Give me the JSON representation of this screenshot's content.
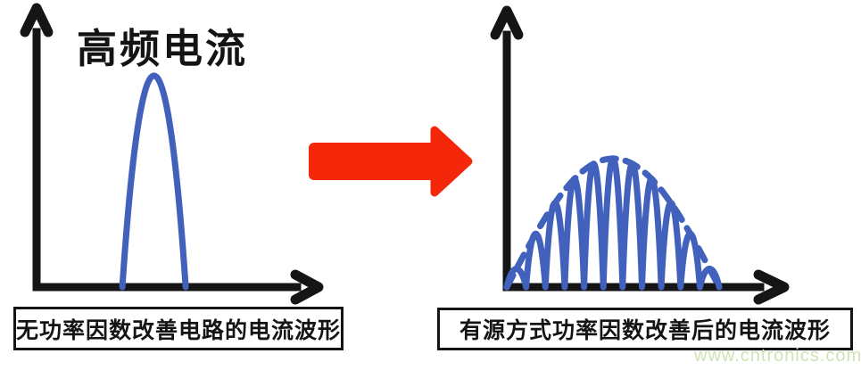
{
  "colors": {
    "axis_black": "#151515",
    "waveform_blue": "#4161bd",
    "arrow_red": "#f5270b",
    "watermark_green": "#cfe4b4",
    "background": "#ffffff"
  },
  "watermark": {
    "text": "www.cntronics.com"
  },
  "transform_arrow": {
    "direction": "right",
    "color_key": "arrow_red"
  },
  "chart_data": [
    {
      "panel": "left",
      "type": "line",
      "title": "高频电流",
      "caption": "无功率因数改善电路的电流波形",
      "x_axis": {
        "label": "",
        "style": "arrow",
        "range": [
          0,
          1
        ]
      },
      "y_axis": {
        "label": "",
        "style": "arrow"
      },
      "grid": false,
      "series": [
        {
          "name": "高频电流脉冲",
          "style": "solid",
          "color_key": "waveform_blue",
          "shape": "narrow-pulse",
          "x_start": 0.303,
          "x_end": 0.527,
          "peak_x": 0.415,
          "peak_height": 0.765
        }
      ]
    },
    {
      "panel": "right",
      "type": "line",
      "caption": "有源方式功率因数改善后的电流波形",
      "x_axis": {
        "label": "",
        "style": "arrow",
        "range": [
          0,
          1
        ]
      },
      "y_axis": {
        "label": "",
        "style": "arrow"
      },
      "grid": false,
      "series": [
        {
          "name": "高频开关电流",
          "style": "solid",
          "color_key": "waveform_blue",
          "shape": "switching-humps",
          "humps": 11,
          "x_start": 0.0,
          "x_end": 0.763,
          "envelope": "half-sine",
          "peak_height": 0.465
        },
        {
          "name": "正弦包络(平均电流)",
          "style": "dashed",
          "color_key": "waveform_blue",
          "shape": "half-sine",
          "x_start": 0.0,
          "x_end": 0.763,
          "peak_height": 0.465,
          "dash": [
            15,
            11
          ]
        }
      ]
    }
  ]
}
